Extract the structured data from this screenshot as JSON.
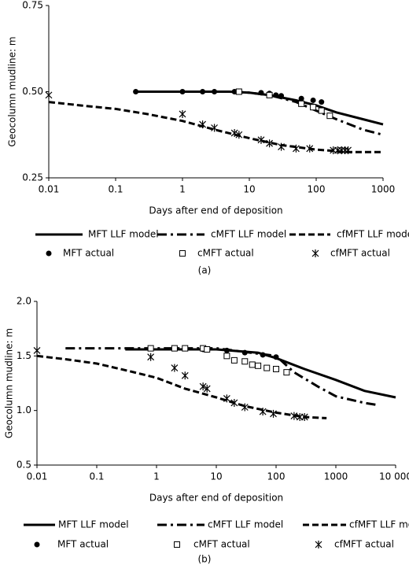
{
  "chart_data": [
    {
      "type": "line",
      "xscale": "log",
      "xlabel": "Days after end of deposition",
      "ylabel": "Geocolumn mudline: m",
      "caption": "(a)",
      "xlim": [
        0.01,
        1000
      ],
      "xticks": [
        0.01,
        0.1,
        1,
        10,
        100,
        1000
      ],
      "ylim": [
        0.25,
        0.75
      ],
      "yticks": [
        0.25,
        {
          "value": 0.5,
          "label": "0.50"
        },
        0.75
      ],
      "grid": false,
      "series": [
        {
          "name": "MFT LLF model",
          "color": "#000000",
          "style": "solid",
          "x": [
            0.2,
            1,
            5,
            10,
            20,
            50,
            100,
            200,
            500,
            1000
          ],
          "values": [
            0.5,
            0.5,
            0.5,
            0.497,
            0.49,
            0.475,
            0.46,
            0.44,
            0.42,
            0.405
          ]
        },
        {
          "name": "cMFT LLF model",
          "color": "#000000",
          "style": "dashdot",
          "x": [
            0.2,
            1,
            5,
            10,
            20,
            50,
            100,
            200,
            500,
            1000
          ],
          "values": [
            0.5,
            0.5,
            0.5,
            0.497,
            0.49,
            0.47,
            0.445,
            0.42,
            0.39,
            0.375
          ]
        },
        {
          "name": "cfMFT LLF model",
          "color": "#000000",
          "style": "dash",
          "x": [
            0.01,
            0.03,
            0.1,
            0.3,
            1,
            3,
            10,
            30,
            100,
            300,
            1000
          ],
          "values": [
            0.47,
            0.46,
            0.45,
            0.435,
            0.415,
            0.39,
            0.365,
            0.345,
            0.332,
            0.325,
            0.325
          ]
        },
        {
          "name": "MFT actual",
          "color": "#000000",
          "marker": "circle",
          "x": [
            0.2,
            1,
            2,
            3,
            6,
            7,
            15,
            20,
            25,
            30,
            60,
            90,
            120
          ],
          "values": [
            0.5,
            0.5,
            0.5,
            0.5,
            0.5,
            0.5,
            0.497,
            0.495,
            0.49,
            0.488,
            0.48,
            0.475,
            0.47
          ]
        },
        {
          "name": "cMFT actual",
          "color": "#000000",
          "marker": "square",
          "x": [
            7,
            20,
            60,
            90,
            120,
            160
          ],
          "values": [
            0.5,
            0.49,
            0.465,
            0.455,
            0.445,
            0.43
          ]
        },
        {
          "name": "cfMFT actual",
          "color": "#000000",
          "marker": "star",
          "x": [
            0.01,
            1,
            2,
            3,
            6,
            7,
            15,
            20,
            30,
            50,
            80,
            180,
            210,
            240,
            270,
            300
          ],
          "values": [
            0.49,
            0.435,
            0.405,
            0.395,
            0.38,
            0.375,
            0.36,
            0.35,
            0.34,
            0.335,
            0.335,
            0.33,
            0.33,
            0.33,
            0.33,
            0.33
          ]
        }
      ]
    },
    {
      "type": "line",
      "xscale": "log",
      "xlabel": "Days after end of deposition",
      "ylabel": "Geocolumn mudline: m",
      "caption": "(b)",
      "xlim": [
        0.01,
        10000
      ],
      "xticks": [
        0.01,
        0.1,
        1,
        10,
        100,
        1000,
        {
          "value": 10000,
          "label": "10 000"
        }
      ],
      "ylim": [
        0.5,
        2.0
      ],
      "yticks": [
        0.5,
        {
          "value": 1.0,
          "label": "1.0"
        },
        1.5,
        {
          "value": 2.0,
          "label": "2.0"
        }
      ],
      "grid": false,
      "series": [
        {
          "name": "MFT LLF model",
          "color": "#000000",
          "style": "solid",
          "x": [
            0.3,
            1,
            10,
            50,
            100,
            300,
            1000,
            3000,
            10000
          ],
          "values": [
            1.56,
            1.56,
            1.56,
            1.53,
            1.48,
            1.38,
            1.28,
            1.18,
            1.12
          ]
        },
        {
          "name": "cMFT LLF model",
          "color": "#000000",
          "style": "dashdot",
          "x": [
            0.03,
            1,
            10,
            100,
            200,
            500,
            1000,
            3000,
            5000
          ],
          "values": [
            1.57,
            1.57,
            1.57,
            1.5,
            1.35,
            1.22,
            1.13,
            1.07,
            1.05
          ]
        },
        {
          "name": "cfMFT LLF model",
          "color": "#000000",
          "style": "dash",
          "x": [
            0.01,
            0.03,
            0.1,
            0.3,
            1,
            3,
            10,
            30,
            100,
            300,
            700
          ],
          "values": [
            1.5,
            1.47,
            1.43,
            1.37,
            1.3,
            1.2,
            1.12,
            1.04,
            0.98,
            0.94,
            0.93
          ]
        },
        {
          "name": "MFT actual",
          "color": "#000000",
          "marker": "circle",
          "x": [
            0.8,
            2,
            3,
            6,
            7,
            15,
            30,
            60,
            100
          ],
          "values": [
            1.57,
            1.57,
            1.57,
            1.56,
            1.56,
            1.55,
            1.53,
            1.51,
            1.49
          ]
        },
        {
          "name": "cMFT actual",
          "color": "#000000",
          "marker": "square",
          "x": [
            0.8,
            2,
            3,
            6,
            7,
            15,
            20,
            30,
            40,
            50,
            70,
            100,
            150
          ],
          "values": [
            1.57,
            1.57,
            1.57,
            1.57,
            1.56,
            1.5,
            1.46,
            1.45,
            1.42,
            1.41,
            1.39,
            1.38,
            1.35
          ]
        },
        {
          "name": "cfMFT actual",
          "color": "#000000",
          "marker": "star",
          "x": [
            0.01,
            0.8,
            2,
            3,
            6,
            7,
            15,
            20,
            30,
            60,
            90,
            200,
            250,
            300
          ],
          "values": [
            1.55,
            1.49,
            1.39,
            1.32,
            1.22,
            1.2,
            1.11,
            1.07,
            1.03,
            0.99,
            0.97,
            0.95,
            0.94,
            0.94
          ]
        }
      ]
    }
  ]
}
